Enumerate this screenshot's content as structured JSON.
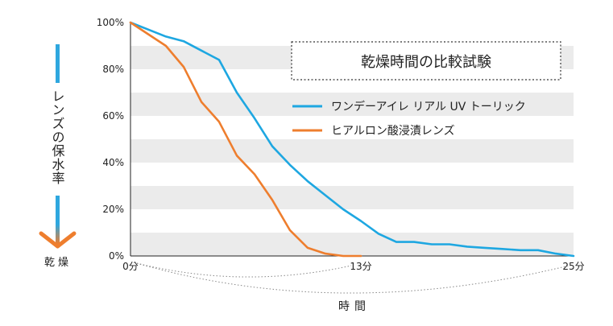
{
  "chart_data": {
    "type": "line",
    "title": "乾燥時間の比較試験",
    "ylabel": "レンズの保水率",
    "y_arrow_label": "乾燥",
    "xlabel": "時間",
    "ylim": [
      0,
      100
    ],
    "xlim": [
      0,
      25
    ],
    "y_ticks": [
      "0%",
      "20%",
      "40%",
      "60%",
      "80%",
      "100%"
    ],
    "x_ticks": [
      {
        "x": 0,
        "label": "0分"
      },
      {
        "x": 13,
        "label": "13分"
      },
      {
        "x": 25,
        "label": "25分"
      }
    ],
    "grid": "alternating horizontal gray bands",
    "legend_position": "top-right",
    "series": [
      {
        "name": "ワンデーアイレ リアル UV トーリック",
        "color": "#1ea7e1",
        "x": [
          0,
          1,
          2,
          3,
          4,
          5,
          6,
          7,
          8,
          9,
          10,
          11,
          12,
          13,
          14,
          15,
          16,
          17,
          18,
          19,
          20,
          21,
          22,
          23,
          24,
          25
        ],
        "values": [
          100,
          97,
          94,
          92,
          88,
          84,
          70,
          59,
          47,
          39,
          32,
          26,
          20,
          15,
          9.5,
          6,
          6,
          5,
          5,
          4,
          3.5,
          3,
          2.5,
          2.5,
          1,
          0
        ]
      },
      {
        "name": "ヒアルロン酸浸漬レンズ",
        "color": "#ee7e2e",
        "x": [
          0,
          1,
          2,
          3,
          4,
          5,
          6,
          7,
          8,
          9,
          10,
          11,
          12,
          13
        ],
        "values": [
          100,
          95,
          90,
          81,
          66,
          57.5,
          43,
          35,
          24,
          11,
          3.5,
          1,
          0,
          0
        ]
      }
    ]
  },
  "colors": {
    "band": "#ebebeb",
    "y_arrow_top": "#2ea7df",
    "y_arrow_bottom": "#ee7e2e",
    "brace": "#888888"
  }
}
